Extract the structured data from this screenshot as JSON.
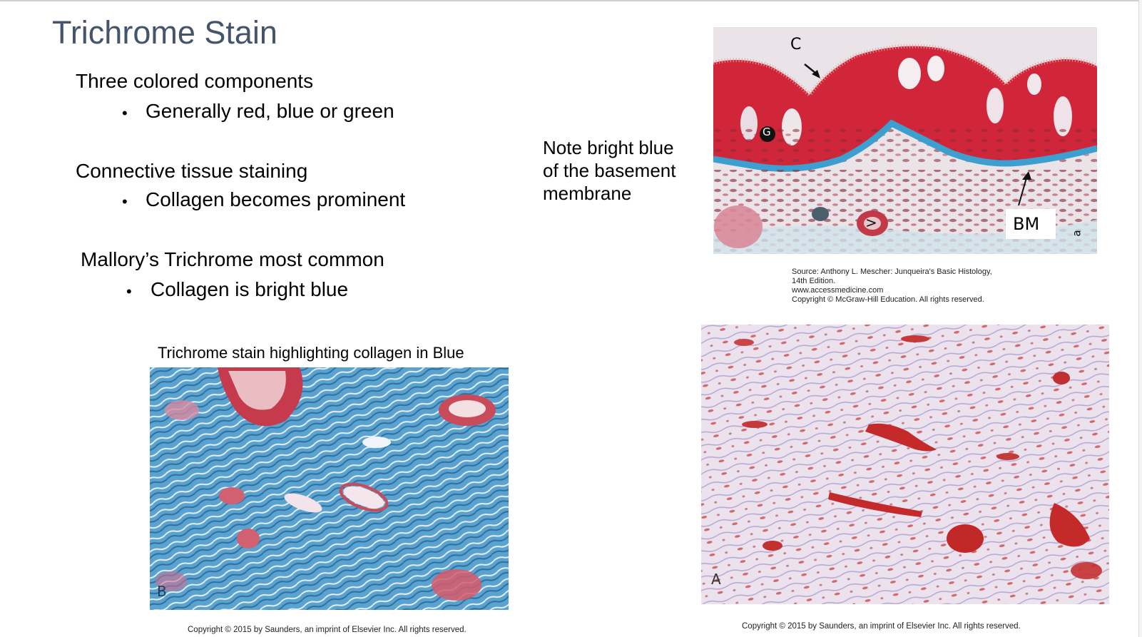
{
  "slide": {
    "title": "Trichrome Stain",
    "sections": [
      {
        "heading": "Three colored components",
        "bullet": "Generally red, blue or green"
      },
      {
        "heading": "Connective tissue staining",
        "bullet": "Collagen becomes prominent"
      },
      {
        "heading": "Mallory’s Trichrome most common",
        "bullet": "Collagen is bright blue"
      }
    ],
    "bullet_glyph": "•",
    "note": [
      "Note bright blue",
      "of the basement",
      "membrane"
    ],
    "top_image": {
      "labels": {
        "c": "C",
        "g": "G",
        "v": ">",
        "bm": "BM",
        "a": "a"
      },
      "source": [
        "Source: Anthony L. Mescher: Junqueira's Basic Histology,",
        "14th Edition.",
        "www.accessmedicine.com",
        "Copyright © McGraw-Hill Education. All rights reserved."
      ]
    },
    "bottom_left": {
      "caption": "Trichrome stain highlighting collagen in Blue",
      "label": "B",
      "copyright": "Copyright © 2015 by Saunders, an imprint of Elsevier Inc. All rights reserved."
    },
    "bottom_right": {
      "label": "A",
      "copyright": "Copyright © 2015 by Saunders, an imprint of Elsevier Inc. All rights reserved."
    },
    "colors": {
      "title": "#44546a",
      "collagen_blue": "#4a97c8",
      "stain_red": "#c8202e",
      "pale_lavender": "#e8dcea"
    }
  }
}
